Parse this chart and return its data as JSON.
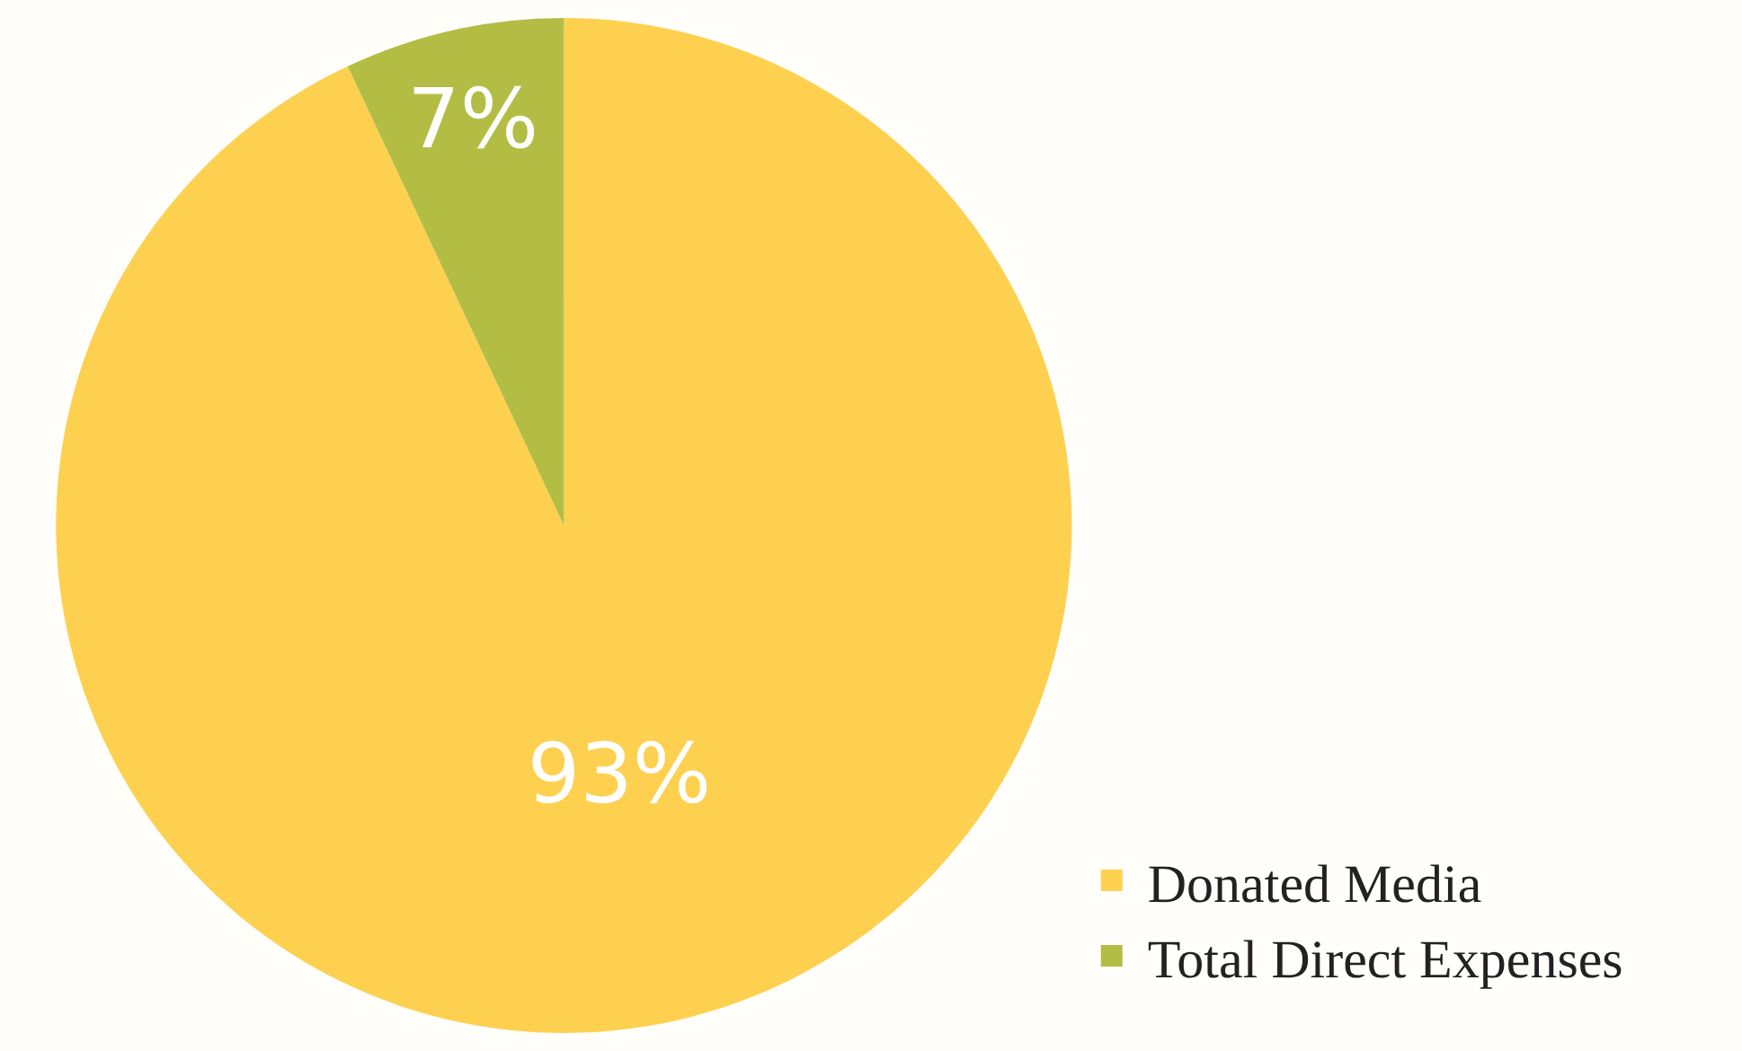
{
  "chart_data": {
    "type": "pie",
    "categories": [
      "Donated Media",
      "Total Direct Expenses"
    ],
    "values": [
      93,
      7
    ],
    "colors": [
      "#fed04f",
      "#b3bd44"
    ],
    "value_labels": [
      "93%",
      "7%"
    ],
    "legend": "bottom right"
  }
}
